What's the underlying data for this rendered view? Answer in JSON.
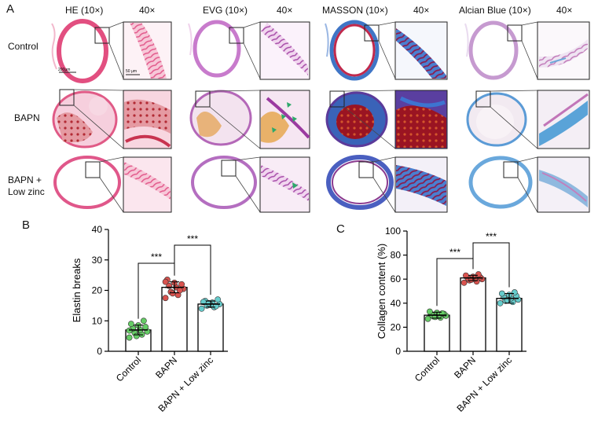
{
  "panel_a": {
    "letter": "A",
    "column_headers": [
      {
        "stain": "HE  (10×)",
        "zoom": "40×"
      },
      {
        "stain": "EVG (10×)",
        "zoom": "40×"
      },
      {
        "stain": "MASSON  (10×)",
        "zoom": "40×"
      },
      {
        "stain": "Alcian Blue  (10×)",
        "zoom": "40×"
      }
    ],
    "row_labels": [
      "Control",
      "BAPN",
      "BAPN +",
      "Low zinc"
    ],
    "scale_bar_10x": "200μm",
    "scale_bar_40x": "50 μm"
  },
  "chart_data": [
    {
      "panel": "B",
      "type": "bar",
      "categories": [
        "Control",
        "BAPN",
        "BAPN + Low zinc"
      ],
      "ylabel": "Elastin breaks",
      "ylim": [
        0,
        40
      ],
      "yticks": [
        0,
        10,
        20,
        30,
        40
      ],
      "values": [
        7,
        21,
        15.5
      ],
      "errors": [
        1.6,
        1.8,
        1.0
      ],
      "points": [
        [
          4.5,
          5.5,
          6.0,
          6.5,
          7.0,
          7.5,
          8.0,
          8.5,
          9.0,
          10.0,
          5.0,
          6.8
        ],
        [
          17.5,
          18.5,
          19.5,
          20.5,
          21.0,
          21.5,
          22.0,
          22.5,
          23.5,
          20.0,
          19.0,
          22.8
        ],
        [
          14.0,
          14.5,
          15.0,
          15.5,
          16.0,
          16.5,
          17.0,
          15.2,
          16.2,
          14.8,
          15.8
        ]
      ],
      "colors": [
        "#66cc66",
        "#d9534f",
        "#66cccc"
      ],
      "significance": [
        {
          "from": 0,
          "to": 1,
          "label": "***"
        },
        {
          "from": 1,
          "to": 2,
          "label": "***"
        }
      ]
    },
    {
      "panel": "C",
      "type": "bar",
      "categories": [
        "Control",
        "BAPN",
        "BAPN + Low zinc"
      ],
      "ylabel": "Collagen content  (%)",
      "ylim": [
        0,
        100
      ],
      "yticks": [
        0,
        20,
        40,
        60,
        80,
        100
      ],
      "values": [
        30,
        61,
        44
      ],
      "errors": [
        2.5,
        2.2,
        4.0
      ],
      "points": [
        [
          27.0,
          28.0,
          29.0,
          29.5,
          30.0,
          30.5,
          31.0,
          32.0,
          33.0,
          31.5,
          28.5
        ],
        [
          57.0,
          58.0,
          59.0,
          60.0,
          60.5,
          61.0,
          61.5,
          62.0,
          63.0,
          64.0,
          59.5
        ],
        [
          40.0,
          41.0,
          42.0,
          43.0,
          44.0,
          45.0,
          46.0,
          47.0,
          48.0,
          49.0,
          42.5
        ]
      ],
      "colors": [
        "#66cc66",
        "#d9534f",
        "#66cccc"
      ],
      "significance": [
        {
          "from": 0,
          "to": 1,
          "label": "***"
        },
        {
          "from": 1,
          "to": 2,
          "label": "***"
        }
      ]
    }
  ]
}
